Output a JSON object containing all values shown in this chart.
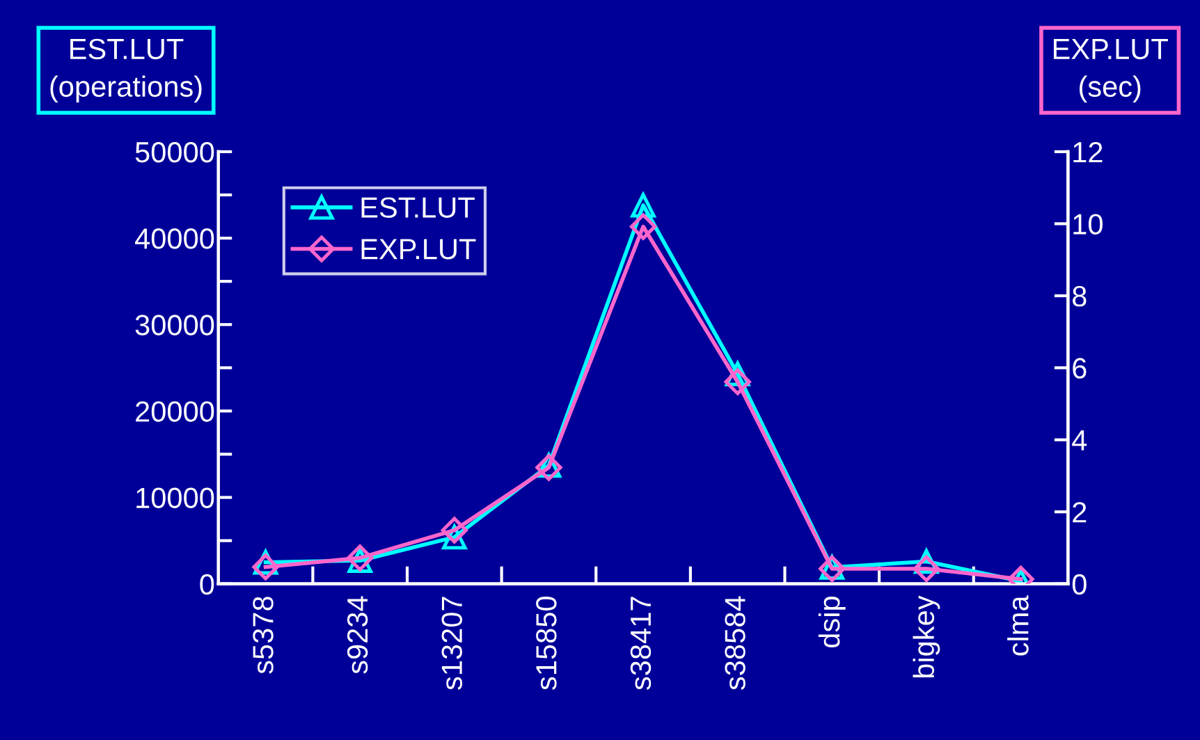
{
  "chart_data": {
    "type": "line",
    "ylabel": "EST.LUT\n(operations)",
    "y2label": "EXP.LUT\n(sec)",
    "categories": [
      "s5378",
      "s9234",
      "s13207",
      "s15850",
      "s38417",
      "s38584",
      "dsip",
      "bigkey",
      "clma"
    ],
    "series": [
      {
        "name": "EST.LUT",
        "color": "#00ffff",
        "marker": "triangle",
        "values": [
          2500,
          2700,
          5400,
          13700,
          43800,
          24300,
          1900,
          2600,
          300
        ]
      },
      {
        "name": "EXP.LUT",
        "color": "#ff66cc",
        "marker": "diamond",
        "axis": "y2",
        "values": [
          0.47,
          0.72,
          1.49,
          3.23,
          9.92,
          5.61,
          0.42,
          0.42,
          0.13
        ]
      }
    ],
    "ylim": [
      0,
      50000
    ],
    "yticks": [
      0,
      10000,
      20000,
      30000,
      40000,
      50000
    ],
    "y2lim": [
      0,
      12
    ],
    "y2ticks": [
      0,
      2,
      4,
      6,
      8,
      10,
      12
    ],
    "legend": "top left",
    "grid": false,
    "line_style": "solid"
  }
}
